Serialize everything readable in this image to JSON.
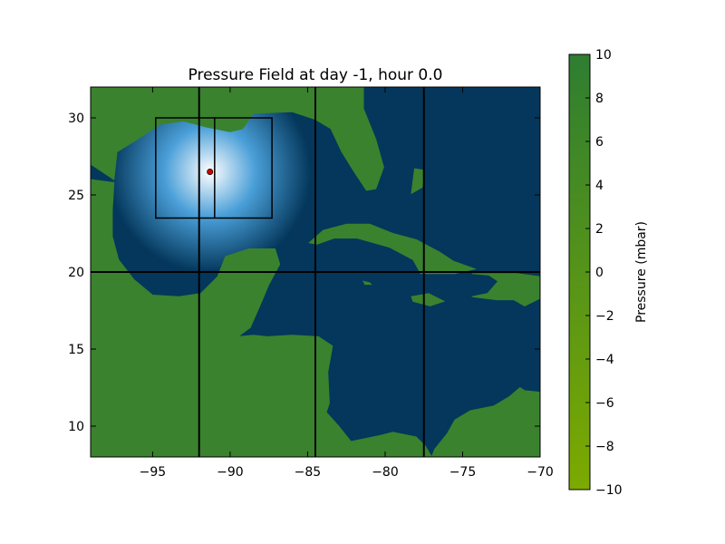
{
  "chart_data": {
    "type": "heatmap",
    "title": "Pressure Field at day  -1, hour 0.0",
    "xlabel": "",
    "ylabel": "",
    "xlim": [
      -99,
      -70
    ],
    "ylim": [
      8,
      32
    ],
    "x_ticks": [
      -95,
      -90,
      -85,
      -80,
      -75,
      -70
    ],
    "x_tick_labels": [
      "−95",
      "−90",
      "−85",
      "−80",
      "−75",
      "−70"
    ],
    "y_ticks": [
      10,
      15,
      20,
      25,
      30
    ],
    "y_tick_labels": [
      "10",
      "15",
      "20",
      "25",
      "30"
    ],
    "grid": false,
    "colors": {
      "ocean": "#04375b",
      "land": "#3a822e",
      "pressure_center": "#ffffff",
      "pressure_edge": "#0a4c80",
      "storm_marker": "#cc0000",
      "lines": "#000000"
    },
    "storm_center": {
      "lon": -91.3,
      "lat": 26.5
    },
    "pressure_low_radius_deg": 6.5,
    "grid_lines": {
      "vertical_lon": [
        -92,
        -84.5,
        -77.5
      ],
      "horizontal_lat": [
        20
      ]
    },
    "boxes": [
      {
        "lon": [
          -94.8,
          -87.3
        ],
        "lat": [
          23.5,
          30
        ]
      },
      {
        "lon": [
          -91.0,
          -91.0
        ],
        "lat": [
          23.5,
          30
        ]
      }
    ],
    "colorbar": {
      "label": "Pressure (mbar)",
      "min": -10,
      "max": 10,
      "ticks": [
        10,
        8,
        6,
        4,
        2,
        0,
        -2,
        -4,
        -6,
        -8,
        -10
      ],
      "tick_labels": [
        "10",
        "8",
        "6",
        "4",
        "2",
        "0",
        "−2",
        "−4",
        "−6",
        "−8",
        "−10"
      ],
      "color_low": "#7daa00",
      "color_high": "#2e7d32"
    },
    "land_polygons": [
      {
        "name": "us-gulf-coast",
        "points": [
          [
            -99,
            32
          ],
          [
            -99,
            27
          ],
          [
            -97.5,
            26
          ],
          [
            -97.3,
            27.8
          ],
          [
            -96,
            28.6
          ],
          [
            -94.5,
            29.6
          ],
          [
            -93,
            29.8
          ],
          [
            -91.5,
            29.4
          ],
          [
            -90,
            29.1
          ],
          [
            -89.2,
            29.3
          ],
          [
            -88.5,
            30.3
          ],
          [
            -86,
            30.4
          ],
          [
            -84.5,
            29.9
          ],
          [
            -83.5,
            29.3
          ],
          [
            -82.8,
            27.8
          ],
          [
            -82,
            26.5
          ],
          [
            -81.2,
            25.3
          ],
          [
            -80.6,
            25.4
          ],
          [
            -80.1,
            26.8
          ],
          [
            -80.6,
            28.6
          ],
          [
            -81.4,
            30.6
          ],
          [
            -81.4,
            32
          ]
        ]
      },
      {
        "name": "mexico-central-america",
        "points": [
          [
            -99,
            26
          ],
          [
            -97.5,
            25.8
          ],
          [
            -97.6,
            24
          ],
          [
            -97.6,
            22.3
          ],
          [
            -97.2,
            20.8
          ],
          [
            -96.2,
            19.5
          ],
          [
            -95,
            18.5
          ],
          [
            -93.3,
            18.4
          ],
          [
            -91.9,
            18.6
          ],
          [
            -90.8,
            19.7
          ],
          [
            -90.3,
            21
          ],
          [
            -88.8,
            21.5
          ],
          [
            -87.1,
            21.5
          ],
          [
            -86.8,
            20.5
          ],
          [
            -87.5,
            19.2
          ],
          [
            -88,
            18
          ],
          [
            -88.7,
            16.4
          ],
          [
            -89.5,
            15.8
          ],
          [
            -88.5,
            15.9
          ],
          [
            -87.6,
            15.8
          ],
          [
            -86,
            15.9
          ],
          [
            -84.3,
            15.8
          ],
          [
            -83.4,
            15.2
          ],
          [
            -83.7,
            13.5
          ],
          [
            -83.6,
            11.5
          ],
          [
            -83.8,
            10.9
          ],
          [
            -83,
            10
          ],
          [
            -82.2,
            9
          ],
          [
            -80.3,
            9.4
          ],
          [
            -79.5,
            9.6
          ],
          [
            -78,
            9.3
          ],
          [
            -77.4,
            8.7
          ],
          [
            -77,
            8
          ],
          [
            -99,
            8
          ]
        ]
      },
      {
        "name": "south-america",
        "points": [
          [
            -77,
            8
          ],
          [
            -76.8,
            8.5
          ],
          [
            -76,
            9.5
          ],
          [
            -75.5,
            10.4
          ],
          [
            -74.5,
            11
          ],
          [
            -73,
            11.3
          ],
          [
            -72,
            11.9
          ],
          [
            -71.3,
            12.5
          ],
          [
            -71,
            12.3
          ],
          [
            -70,
            12.2
          ],
          [
            -70,
            8
          ]
        ]
      },
      {
        "name": "cuba",
        "points": [
          [
            -84.9,
            21.9
          ],
          [
            -84,
            22.7
          ],
          [
            -82.5,
            23.1
          ],
          [
            -81,
            23.1
          ],
          [
            -79.5,
            22.5
          ],
          [
            -78,
            22.1
          ],
          [
            -76.5,
            21.3
          ],
          [
            -75.6,
            20.7
          ],
          [
            -74.2,
            20.2
          ],
          [
            -75.5,
            19.9
          ],
          [
            -77.7,
            19.9
          ],
          [
            -78.2,
            20.8
          ],
          [
            -79.7,
            21.6
          ],
          [
            -81.8,
            22.2
          ],
          [
            -83.3,
            22.2
          ],
          [
            -84.4,
            21.8
          ]
        ]
      },
      {
        "name": "jamaica",
        "points": [
          [
            -78.3,
            18.4
          ],
          [
            -77.2,
            18.6
          ],
          [
            -76.2,
            18.1
          ],
          [
            -77.1,
            17.8
          ],
          [
            -78.2,
            18.1
          ]
        ]
      },
      {
        "name": "hispaniola",
        "points": [
          [
            -74.4,
            19.9
          ],
          [
            -72.8,
            19.9
          ],
          [
            -71.5,
            19.9
          ],
          [
            -70,
            19.7
          ],
          [
            -70,
            18.3
          ],
          [
            -71,
            17.8
          ],
          [
            -71.7,
            18.2
          ],
          [
            -72.8,
            18.2
          ],
          [
            -74.4,
            18.4
          ],
          [
            -73.4,
            18.6
          ],
          [
            -72.7,
            19.4
          ],
          [
            -73.3,
            19.8
          ]
        ]
      },
      {
        "name": "puerto-rico",
        "points": [
          [
            -70,
            18.4
          ],
          [
            -70,
            18.6
          ],
          [
            -70.3,
            18.5
          ]
        ]
      },
      {
        "name": "bahamas",
        "points": [
          [
            -78.1,
            26.7
          ],
          [
            -77.5,
            26.6
          ],
          [
            -77.6,
            25.5
          ],
          [
            -78.3,
            25.1
          ]
        ]
      },
      {
        "name": "cayman",
        "points": [
          [
            -81.4,
            19.4
          ],
          [
            -81.0,
            19.3
          ],
          [
            -80.9,
            19.2
          ],
          [
            -81.3,
            19.2
          ]
        ]
      }
    ]
  }
}
